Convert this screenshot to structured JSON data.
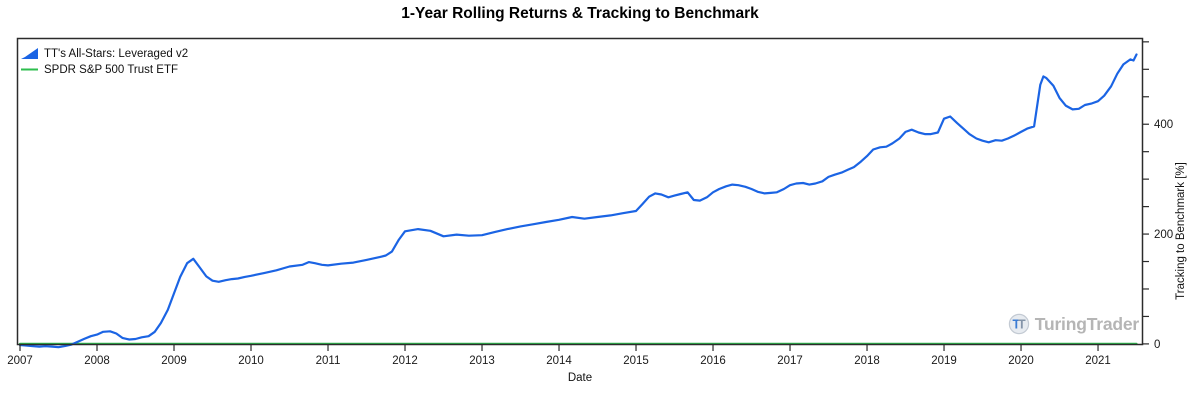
{
  "title": "1-Year Rolling Returns & Tracking to Benchmark",
  "legend": {
    "items": [
      {
        "label": "TT's All-Stars: Leveraged v2",
        "color": "#1b64e4",
        "icon": "area-wedge-icon"
      },
      {
        "label": "SPDR S&P 500 Trust ETF",
        "color": "#2dbe4e",
        "icon": "line-icon"
      }
    ]
  },
  "watermark": {
    "text": "TuringTrader",
    "icon": "turingtrader-logo-icon",
    "color": "#b5b5b5"
  },
  "colors": {
    "series1": "#1b64e4",
    "series2": "#2dbe4e",
    "axis": "#2b2b2b",
    "tick_label": "#1a1a1a"
  },
  "chart_data": {
    "type": "line",
    "title": "1-Year Rolling Returns & Tracking to Benchmark",
    "xlabel": "Date",
    "ylabel": "Tracking to Benchmark [%]",
    "xlim": [
      2006.961,
      2021.584
    ],
    "ylim": [
      -2,
      557
    ],
    "x_major_ticks": [
      2007,
      2008,
      2009,
      2010,
      2011,
      2012,
      2013,
      2014,
      2015,
      2016,
      2017,
      2018,
      2019,
      2020,
      2021
    ],
    "y_major_ticks": [
      0,
      200,
      400
    ],
    "y_minor_tick_step": 50,
    "grid": false,
    "legend_position": "top-left",
    "y_axis_side": "right",
    "series": [
      {
        "name": "TT's All-Stars: Leveraged v2",
        "color": "#1b64e4",
        "points": [
          [
            2007.0,
            -2
          ],
          [
            2007.08,
            -3
          ],
          [
            2007.17,
            -4
          ],
          [
            2007.25,
            -5
          ],
          [
            2007.33,
            -4
          ],
          [
            2007.42,
            -5
          ],
          [
            2007.5,
            -6
          ],
          [
            2007.58,
            -4
          ],
          [
            2007.67,
            -1
          ],
          [
            2007.75,
            4
          ],
          [
            2007.83,
            9
          ],
          [
            2007.92,
            14
          ],
          [
            2008.0,
            17
          ],
          [
            2008.08,
            22
          ],
          [
            2008.17,
            23
          ],
          [
            2008.25,
            19
          ],
          [
            2008.33,
            11
          ],
          [
            2008.42,
            8
          ],
          [
            2008.5,
            9
          ],
          [
            2008.58,
            12
          ],
          [
            2008.67,
            14
          ],
          [
            2008.75,
            22
          ],
          [
            2008.83,
            38
          ],
          [
            2008.92,
            62
          ],
          [
            2009.0,
            92
          ],
          [
            2009.08,
            122
          ],
          [
            2009.17,
            147
          ],
          [
            2009.25,
            155
          ],
          [
            2009.33,
            140
          ],
          [
            2009.42,
            123
          ],
          [
            2009.5,
            115
          ],
          [
            2009.58,
            113
          ],
          [
            2009.67,
            116
          ],
          [
            2009.75,
            118
          ],
          [
            2009.83,
            119
          ],
          [
            2009.92,
            122
          ],
          [
            2010.0,
            124
          ],
          [
            2010.17,
            129
          ],
          [
            2010.33,
            134
          ],
          [
            2010.5,
            141
          ],
          [
            2010.67,
            144
          ],
          [
            2010.75,
            149
          ],
          [
            2010.83,
            147
          ],
          [
            2010.92,
            144
          ],
          [
            2011.0,
            143
          ],
          [
            2011.17,
            146
          ],
          [
            2011.33,
            148
          ],
          [
            2011.5,
            153
          ],
          [
            2011.67,
            158
          ],
          [
            2011.75,
            161
          ],
          [
            2011.83,
            168
          ],
          [
            2011.92,
            190
          ],
          [
            2012.0,
            205
          ],
          [
            2012.17,
            209
          ],
          [
            2012.33,
            206
          ],
          [
            2012.5,
            196
          ],
          [
            2012.67,
            199
          ],
          [
            2012.83,
            197
          ],
          [
            2013.0,
            198
          ],
          [
            2013.17,
            204
          ],
          [
            2013.33,
            209
          ],
          [
            2013.5,
            214
          ],
          [
            2013.67,
            218
          ],
          [
            2013.83,
            222
          ],
          [
            2014.0,
            226
          ],
          [
            2014.17,
            231
          ],
          [
            2014.33,
            228
          ],
          [
            2014.5,
            231
          ],
          [
            2014.67,
            234
          ],
          [
            2014.83,
            238
          ],
          [
            2015.0,
            242
          ],
          [
            2015.08,
            254
          ],
          [
            2015.17,
            268
          ],
          [
            2015.25,
            274
          ],
          [
            2015.33,
            272
          ],
          [
            2015.42,
            267
          ],
          [
            2015.5,
            270
          ],
          [
            2015.58,
            273
          ],
          [
            2015.67,
            276
          ],
          [
            2015.75,
            262
          ],
          [
            2015.83,
            261
          ],
          [
            2015.92,
            267
          ],
          [
            2016.0,
            276
          ],
          [
            2016.08,
            282
          ],
          [
            2016.17,
            287
          ],
          [
            2016.25,
            290
          ],
          [
            2016.33,
            289
          ],
          [
            2016.42,
            286
          ],
          [
            2016.5,
            282
          ],
          [
            2016.58,
            277
          ],
          [
            2016.67,
            274
          ],
          [
            2016.75,
            275
          ],
          [
            2016.83,
            276
          ],
          [
            2016.92,
            282
          ],
          [
            2017.0,
            289
          ],
          [
            2017.08,
            292
          ],
          [
            2017.17,
            293
          ],
          [
            2017.25,
            290
          ],
          [
            2017.33,
            292
          ],
          [
            2017.42,
            296
          ],
          [
            2017.5,
            304
          ],
          [
            2017.58,
            308
          ],
          [
            2017.67,
            312
          ],
          [
            2017.75,
            317
          ],
          [
            2017.83,
            322
          ],
          [
            2017.92,
            332
          ],
          [
            2018.0,
            342
          ],
          [
            2018.08,
            354
          ],
          [
            2018.17,
            358
          ],
          [
            2018.25,
            359
          ],
          [
            2018.33,
            365
          ],
          [
            2018.42,
            374
          ],
          [
            2018.5,
            386
          ],
          [
            2018.58,
            390
          ],
          [
            2018.67,
            385
          ],
          [
            2018.75,
            382
          ],
          [
            2018.83,
            382
          ],
          [
            2018.92,
            385
          ],
          [
            2019.0,
            410
          ],
          [
            2019.08,
            414
          ],
          [
            2019.17,
            402
          ],
          [
            2019.25,
            392
          ],
          [
            2019.33,
            382
          ],
          [
            2019.42,
            374
          ],
          [
            2019.5,
            370
          ],
          [
            2019.58,
            367
          ],
          [
            2019.67,
            371
          ],
          [
            2019.75,
            370
          ],
          [
            2019.83,
            374
          ],
          [
            2019.92,
            380
          ],
          [
            2020.0,
            386
          ],
          [
            2020.08,
            392
          ],
          [
            2020.17,
            396
          ],
          [
            2020.25,
            472
          ],
          [
            2020.29,
            487
          ],
          [
            2020.33,
            484
          ],
          [
            2020.42,
            470
          ],
          [
            2020.5,
            448
          ],
          [
            2020.58,
            434
          ],
          [
            2020.67,
            427
          ],
          [
            2020.75,
            428
          ],
          [
            2020.83,
            435
          ],
          [
            2020.92,
            438
          ],
          [
            2021.0,
            442
          ],
          [
            2021.08,
            452
          ],
          [
            2021.17,
            469
          ],
          [
            2021.25,
            492
          ],
          [
            2021.33,
            509
          ],
          [
            2021.42,
            518
          ],
          [
            2021.46,
            516
          ],
          [
            2021.5,
            527
          ]
        ]
      },
      {
        "name": "SPDR S&P 500 Trust ETF",
        "color": "#2dbe4e",
        "points": [
          [
            2007.0,
            0
          ],
          [
            2021.5,
            0
          ]
        ]
      }
    ]
  }
}
